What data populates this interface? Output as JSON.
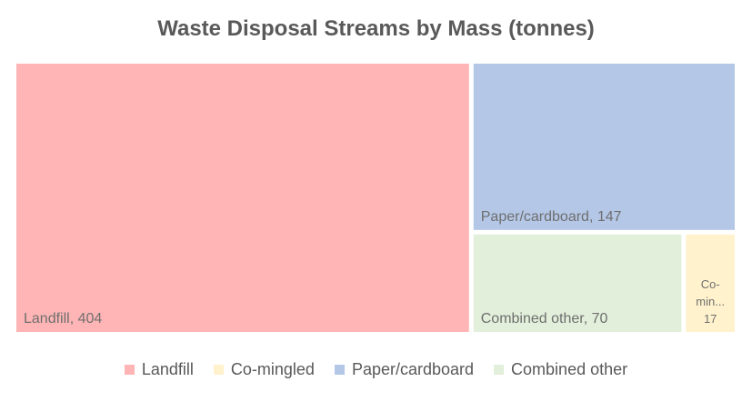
{
  "chart_data": {
    "type": "treemap",
    "title": "Waste Disposal Streams by Mass (tonnes)",
    "items": [
      {
        "name": "Landfill",
        "value": 404,
        "label": "Landfill, 404",
        "color": "#FFB5B5"
      },
      {
        "name": "Paper/cardboard",
        "value": 147,
        "label": "Paper/cardboard, 147",
        "color": "#B4C7E7"
      },
      {
        "name": "Combined other",
        "value": 70,
        "label": "Combined other, 70",
        "color": "#E2EFDA"
      },
      {
        "name": "Co-mingled",
        "value": 17,
        "label_lines": [
          "Co-",
          "min...",
          "17"
        ],
        "color": "#FFF2CC"
      }
    ],
    "legend": {
      "position": "bottom",
      "entries": [
        {
          "name": "Landfill",
          "color": "#FFB5B5"
        },
        {
          "name": "Co-mingled",
          "color": "#FFF2CC"
        },
        {
          "name": "Paper/cardboard",
          "color": "#B4C7E7"
        },
        {
          "name": "Combined other",
          "color": "#E2EFDA"
        }
      ]
    }
  }
}
